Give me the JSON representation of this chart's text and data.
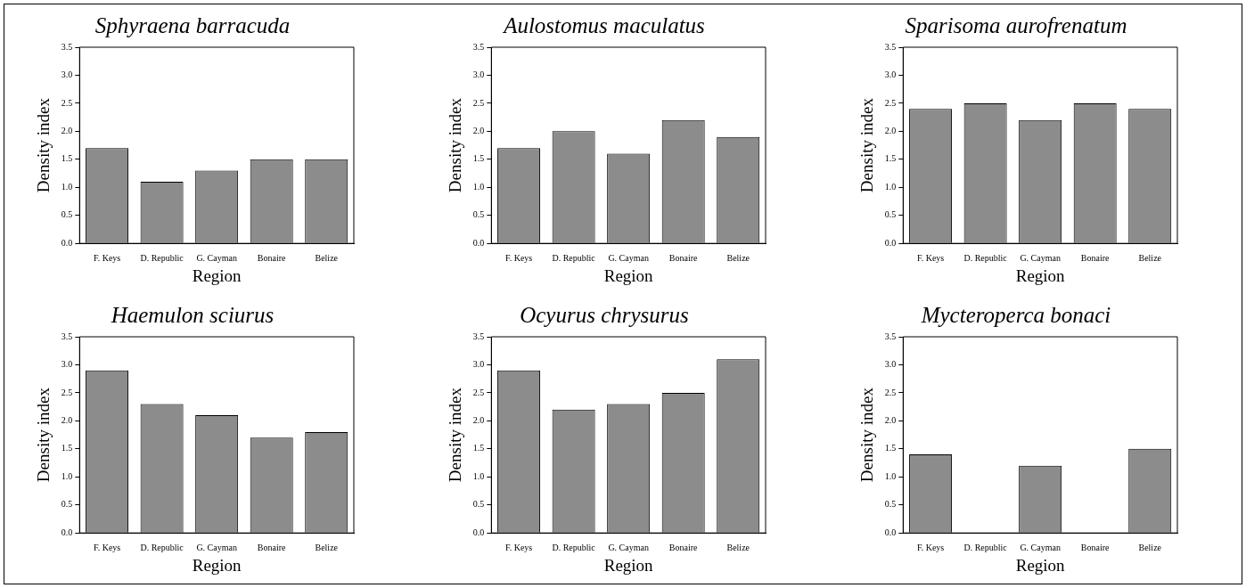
{
  "chart_data": [
    {
      "type": "bar",
      "title": "Sphyraena barracuda",
      "xlabel": "Region",
      "ylabel": "Density index",
      "categories": [
        "F. Keys",
        "D. Republic",
        "G. Cayman",
        "Bonaire",
        "Belize"
      ],
      "values": [
        1.7,
        1.1,
        1.3,
        1.5,
        1.5
      ],
      "color": "#8c8c8c",
      "ylim": [
        0,
        3.5
      ],
      "yticks": [
        {
          "value": 0,
          "label": "0.0"
        },
        {
          "value": 0.5,
          "label": "0.5"
        },
        {
          "value": 1,
          "label": "1.0"
        },
        {
          "value": 1.5,
          "label": "1.5"
        },
        {
          "value": 2,
          "label": "2.0"
        },
        {
          "value": 2.5,
          "label": "2.5"
        },
        {
          "value": 3,
          "label": "3.0"
        },
        {
          "value": 3.5,
          "label": "3.5"
        }
      ]
    },
    {
      "type": "bar",
      "title": "Aulostomus maculatus",
      "xlabel": "Region",
      "ylabel": "Density index",
      "categories": [
        "F. Keys",
        "D. Republic",
        "G. Cayman",
        "Bonaire",
        "Belize"
      ],
      "values": [
        1.7,
        2.0,
        1.6,
        2.2,
        1.9
      ],
      "color": "#8c8c8c",
      "ylim": [
        0,
        3.5
      ],
      "yticks": [
        {
          "value": 0,
          "label": "0.0"
        },
        {
          "value": 0.5,
          "label": "0.5"
        },
        {
          "value": 1,
          "label": "1.0"
        },
        {
          "value": 1.5,
          "label": "1.5"
        },
        {
          "value": 2,
          "label": "2.0"
        },
        {
          "value": 2.5,
          "label": "2.5"
        },
        {
          "value": 3,
          "label": "3.0"
        },
        {
          "value": 3.5,
          "label": "3.5"
        }
      ]
    },
    {
      "type": "bar",
      "title": "Sparisoma aurofrenatum",
      "xlabel": "Region",
      "ylabel": "Density index",
      "categories": [
        "F. Keys",
        "D. Republic",
        "G. Cayman",
        "Bonaire",
        "Belize"
      ],
      "values": [
        2.4,
        2.5,
        2.2,
        2.5,
        2.4
      ],
      "color": "#8c8c8c",
      "ylim": [
        0,
        3.5
      ],
      "yticks": [
        {
          "value": 0,
          "label": "0.0"
        },
        {
          "value": 0.5,
          "label": "0.5"
        },
        {
          "value": 1,
          "label": "1.0"
        },
        {
          "value": 1.5,
          "label": "1.5"
        },
        {
          "value": 2,
          "label": "2.0"
        },
        {
          "value": 2.5,
          "label": "2.5"
        },
        {
          "value": 3,
          "label": "3.0"
        },
        {
          "value": 3.5,
          "label": "3.5"
        }
      ]
    },
    {
      "type": "bar",
      "title": "Haemulon sciurus",
      "xlabel": "Region",
      "ylabel": "Density index",
      "categories": [
        "F. Keys",
        "D. Republic",
        "G. Cayman",
        "Bonaire",
        "Belize"
      ],
      "values": [
        2.9,
        2.3,
        2.1,
        1.7,
        1.8
      ],
      "color": "#8c8c8c",
      "ylim": [
        0,
        3.5
      ],
      "yticks": [
        {
          "value": 0,
          "label": "0.0"
        },
        {
          "value": 0.5,
          "label": "0.5"
        },
        {
          "value": 1,
          "label": "1.0"
        },
        {
          "value": 1.5,
          "label": "1.5"
        },
        {
          "value": 2,
          "label": "2.0"
        },
        {
          "value": 2.5,
          "label": "2.5"
        },
        {
          "value": 3,
          "label": "3.0"
        },
        {
          "value": 3.5,
          "label": "3.5"
        }
      ]
    },
    {
      "type": "bar",
      "title": "Ocyurus chrysurus",
      "xlabel": "Region",
      "ylabel": "Density index",
      "categories": [
        "F. Keys",
        "D. Republic",
        "G. Cayman",
        "Bonaire",
        "Belize"
      ],
      "values": [
        2.9,
        2.2,
        2.3,
        2.5,
        3.1
      ],
      "color": "#8c8c8c",
      "ylim": [
        0,
        3.5
      ],
      "yticks": [
        {
          "value": 0,
          "label": "0.0"
        },
        {
          "value": 0.5,
          "label": "0.5"
        },
        {
          "value": 1,
          "label": "1.0"
        },
        {
          "value": 1.5,
          "label": "1.5"
        },
        {
          "value": 2,
          "label": "2.0"
        },
        {
          "value": 2.5,
          "label": "2.5"
        },
        {
          "value": 3,
          "label": "3.0"
        },
        {
          "value": 3.5,
          "label": "3.5"
        }
      ]
    },
    {
      "type": "bar",
      "title": "Mycteroperca bonaci",
      "xlabel": "Region",
      "ylabel": "Density index",
      "categories": [
        "F. Keys",
        "D. Republic",
        "G. Cayman",
        "Bonaire",
        "Belize"
      ],
      "values": [
        1.4,
        0,
        1.2,
        0,
        1.5
      ],
      "color": "#8c8c8c",
      "ylim": [
        0,
        3.5
      ],
      "yticks": [
        {
          "value": 0,
          "label": "0.0"
        },
        {
          "value": 0.5,
          "label": "0.5"
        },
        {
          "value": 1,
          "label": "1.0"
        },
        {
          "value": 1.5,
          "label": "1.5"
        },
        {
          "value": 2,
          "label": "2.0"
        },
        {
          "value": 2.5,
          "label": "2.5"
        },
        {
          "value": 3,
          "label": "3.0"
        },
        {
          "value": 3.5,
          "label": "3.5"
        }
      ]
    }
  ]
}
